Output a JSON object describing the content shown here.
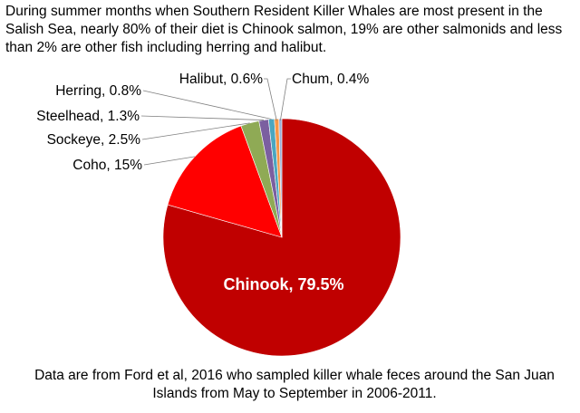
{
  "intro_text": "During summer months when Southern Resident Killer Whales are most present in the Salish Sea, nearly 80% of their diet is Chinook salmon, 19% are other salmonids and less than 2% are other fish including herring and halibut.",
  "footnote": "Data are from Ford et al, 2016 who sampled killer whale feces around the San Juan Islands from May to September in 2006-2011.",
  "chart_data": {
    "type": "pie",
    "start": "12 o'clock, clockwise",
    "slices": [
      {
        "name": "Chinook",
        "value": 79.5,
        "label": "Chinook, 79.5%",
        "color": "#C00000"
      },
      {
        "name": "Coho",
        "value": 15,
        "label": "Coho, 15%",
        "color": "#FF0000"
      },
      {
        "name": "Sockeye",
        "value": 2.5,
        "label": "Sockeye, 2.5%",
        "color": "#8FAA55"
      },
      {
        "name": "Steelhead",
        "value": 1.3,
        "label": "Steelhead, 1.3%",
        "color": "#7B5FA0"
      },
      {
        "name": "Herring",
        "value": 0.8,
        "label": "Herring, 0.8%",
        "color": "#4AA6C0"
      },
      {
        "name": "Halibut",
        "value": 0.6,
        "label": "Halibut, 0.6%",
        "color": "#F79646"
      },
      {
        "name": "Chum",
        "value": 0.4,
        "label": "Chum, 0.4%",
        "color": "#9BB0D8"
      }
    ]
  }
}
